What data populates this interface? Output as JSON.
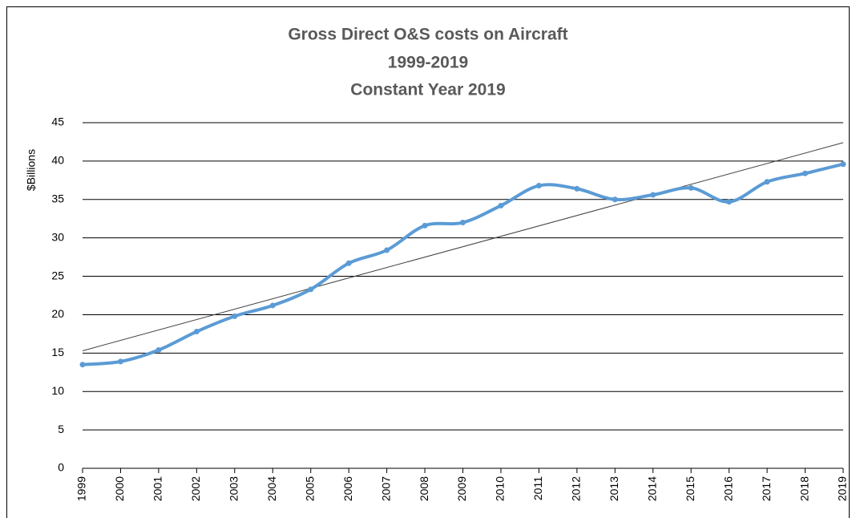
{
  "chart_data": {
    "type": "line",
    "title": [
      "Gross Direct O&S costs on Aircraft",
      "1999-2019",
      "Constant Year 2019"
    ],
    "y_label": "$Billions",
    "categories": [
      "1999",
      "2000",
      "2001",
      "2002",
      "2003",
      "2004",
      "2005",
      "2006",
      "2007",
      "2008",
      "2009",
      "2010",
      "2011",
      "2012",
      "2013",
      "2014",
      "2015",
      "2016",
      "2017",
      "2018",
      "2019"
    ],
    "series": [
      {
        "color": "#5b9bd5",
        "values": [
          13.5,
          13.9,
          15.4,
          17.8,
          19.8,
          21.2,
          23.3,
          26.7,
          28.4,
          31.6,
          32.0,
          34.2,
          36.8,
          36.4,
          35.0,
          35.6,
          36.5,
          34.7,
          37.3,
          38.4,
          39.6
        ]
      }
    ],
    "trendline": {
      "color": "#404040",
      "values": [
        15.3,
        42.4
      ]
    },
    "ylim": [
      0,
      45
    ],
    "yticks": [
      0,
      5,
      10,
      15,
      20,
      25,
      30,
      35,
      40,
      45
    ],
    "grid": true,
    "smooth": true
  }
}
